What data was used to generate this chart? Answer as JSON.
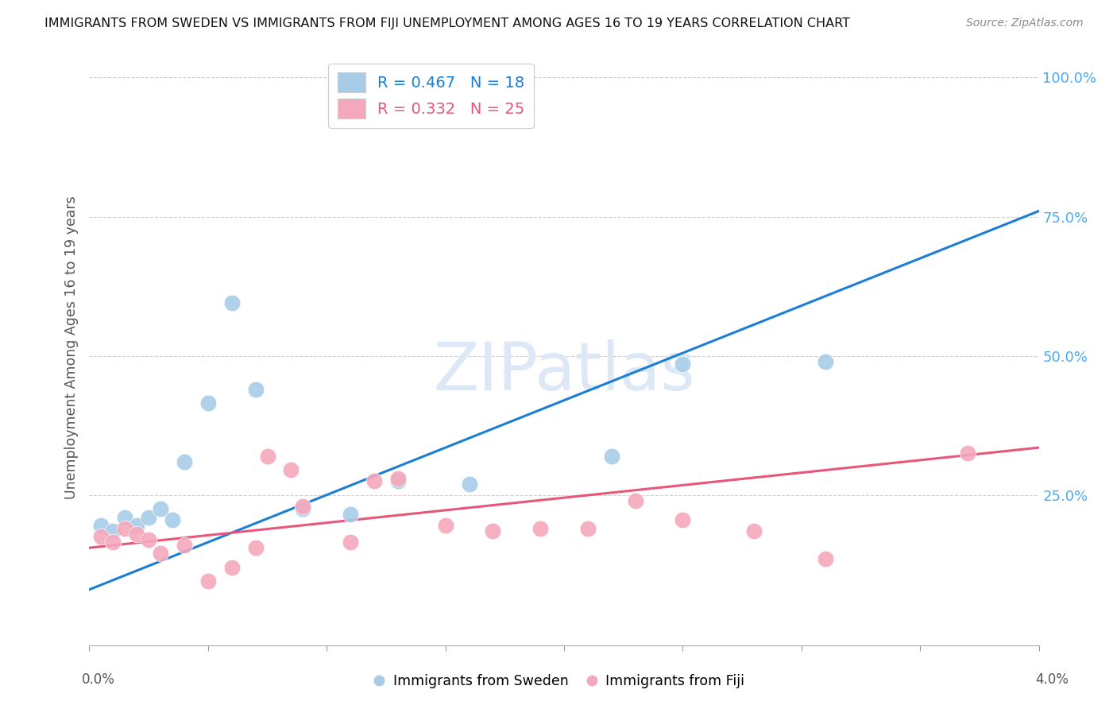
{
  "title": "IMMIGRANTS FROM SWEDEN VS IMMIGRANTS FROM FIJI UNEMPLOYMENT AMONG AGES 16 TO 19 YEARS CORRELATION CHART",
  "source": "Source: ZipAtlas.com",
  "ylabel": "Unemployment Among Ages 16 to 19 years",
  "ytick_labels": [
    "100.0%",
    "75.0%",
    "50.0%",
    "25.0%"
  ],
  "ytick_values": [
    1.0,
    0.75,
    0.5,
    0.25
  ],
  "sweden_color": "#a8cce8",
  "fiji_color": "#f4a8bc",
  "sweden_line_color": "#1a7fd4",
  "fiji_line_color": "#e8567a",
  "right_axis_color": "#4baaf5",
  "watermark_color": "#dce8f5",
  "sweden_x": [
    0.0005,
    0.001,
    0.0015,
    0.002,
    0.0025,
    0.003,
    0.0035,
    0.004,
    0.005,
    0.006,
    0.007,
    0.009,
    0.011,
    0.013,
    0.016,
    0.022,
    0.025,
    0.031
  ],
  "sweden_y": [
    0.195,
    0.185,
    0.21,
    0.195,
    0.21,
    0.225,
    0.205,
    0.31,
    0.415,
    0.595,
    0.44,
    0.225,
    0.215,
    0.275,
    0.27,
    0.32,
    0.485,
    0.49
  ],
  "fiji_x": [
    0.0005,
    0.001,
    0.0015,
    0.002,
    0.0025,
    0.003,
    0.004,
    0.005,
    0.006,
    0.007,
    0.0075,
    0.0085,
    0.009,
    0.011,
    0.012,
    0.013,
    0.015,
    0.017,
    0.019,
    0.021,
    0.023,
    0.025,
    0.028,
    0.031,
    0.037
  ],
  "fiji_y": [
    0.175,
    0.165,
    0.19,
    0.18,
    0.17,
    0.145,
    0.16,
    0.095,
    0.12,
    0.155,
    0.32,
    0.295,
    0.23,
    0.165,
    0.275,
    0.28,
    0.195,
    0.185,
    0.19,
    0.19,
    0.24,
    0.205,
    0.185,
    0.135,
    0.325
  ],
  "sweden_line_x0": 0.0,
  "sweden_line_y0": 0.08,
  "sweden_line_x1": 0.04,
  "sweden_line_y1": 0.76,
  "fiji_line_x0": 0.0,
  "fiji_line_y0": 0.155,
  "fiji_line_x1": 0.04,
  "fiji_line_y1": 0.335,
  "xlim": [
    0.0,
    0.04
  ],
  "ylim": [
    -0.02,
    1.05
  ],
  "background_color": "#ffffff",
  "grid_color": "#d0d0d0"
}
